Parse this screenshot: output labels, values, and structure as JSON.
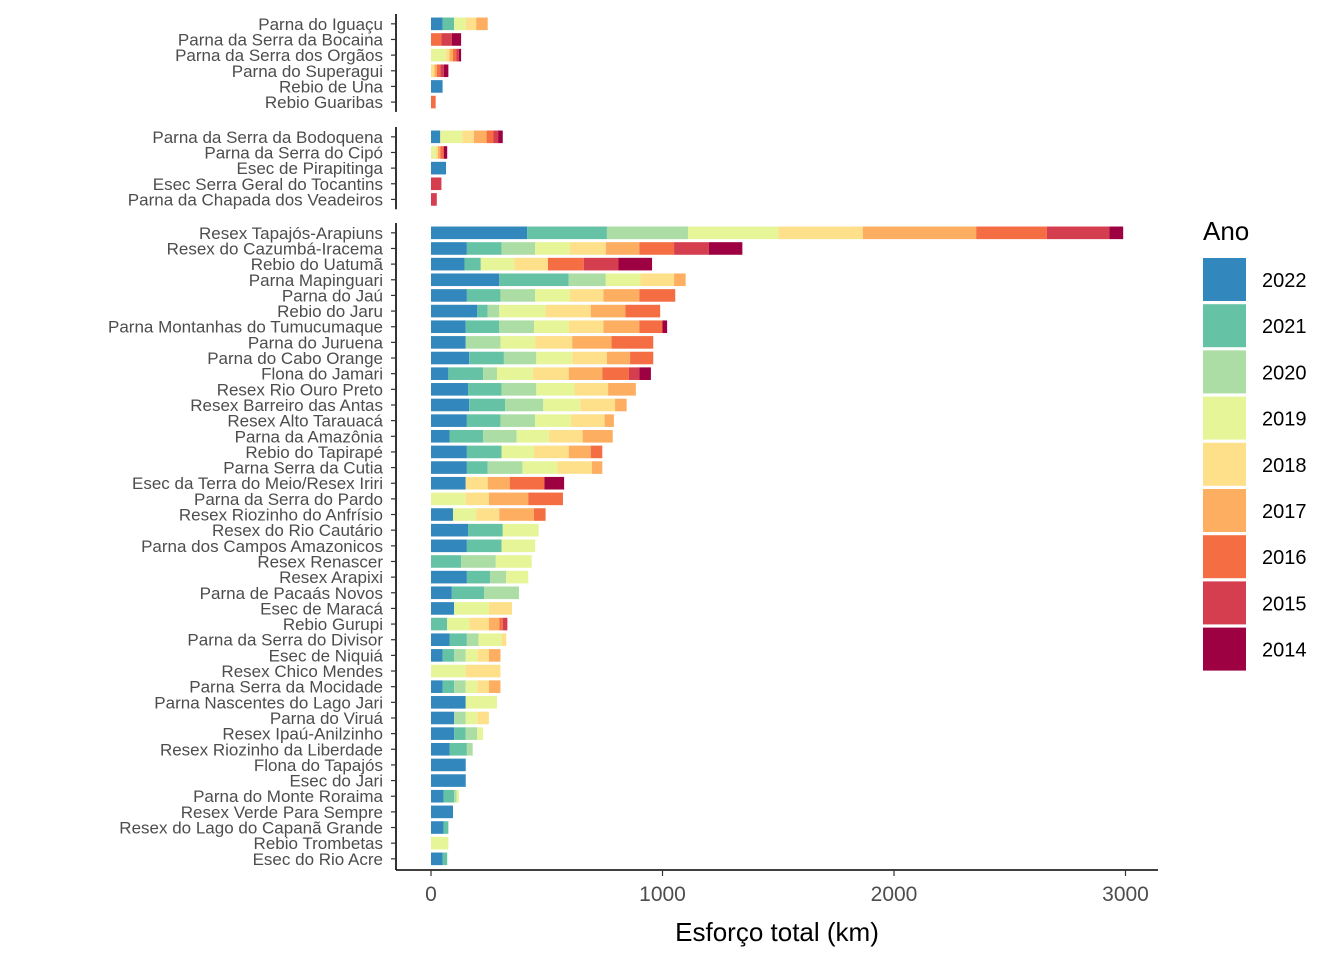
{
  "chart_data": {
    "type": "bar",
    "orientation": "horizontal",
    "stacked": true,
    "xlabel": "Esforço total (km)",
    "x_ticks": [
      0,
      1000,
      2000,
      3000
    ],
    "xlim": [
      -140,
      3140
    ],
    "grid": false,
    "legend": {
      "title": "Ano",
      "placement": "right",
      "entries": [
        {
          "label": "2022",
          "color": "#3288BD"
        },
        {
          "label": "2021",
          "color": "#66C2A5"
        },
        {
          "label": "2020",
          "color": "#ABDDA4"
        },
        {
          "label": "2019",
          "color": "#E6F598"
        },
        {
          "label": "2018",
          "color": "#FEE08B"
        },
        {
          "label": "2017",
          "color": "#FDAE61"
        },
        {
          "label": "2016",
          "color": "#F46D43"
        },
        {
          "label": "2015",
          "color": "#D53E4F"
        },
        {
          "label": "2014",
          "color": "#9E0142"
        }
      ]
    },
    "series_order": [
      "2022",
      "2021",
      "2020",
      "2019",
      "2018",
      "2017",
      "2016",
      "2015",
      "2014"
    ],
    "panels": [
      {
        "categories": [
          {
            "name": "Parna do Iguaçu",
            "values": [
              50,
              50,
              0,
              50,
              45,
              50,
              0,
              0,
              0
            ]
          },
          {
            "name": "Parna da Serra da Bocaina",
            "values": [
              0,
              0,
              0,
              0,
              0,
              0,
              45,
              45,
              40
            ]
          },
          {
            "name": "Parna da Serra dos Orgãos",
            "values": [
              0,
              0,
              0,
              65,
              15,
              15,
              15,
              10,
              10
            ]
          },
          {
            "name": "Parna do Superagui",
            "values": [
              0,
              0,
              0,
              0,
              15,
              10,
              15,
              15,
              20
            ]
          },
          {
            "name": "Rebio de Una",
            "values": [
              50,
              0,
              0,
              0,
              0,
              0,
              0,
              0,
              0
            ]
          },
          {
            "name": "Rebio Guaribas",
            "values": [
              0,
              0,
              0,
              0,
              0,
              0,
              20,
              0,
              0
            ]
          }
        ]
      },
      {
        "categories": [
          {
            "name": "Parna da Serra da Bodoquena",
            "values": [
              40,
              0,
              0,
              95,
              50,
              55,
              30,
              20,
              20
            ]
          },
          {
            "name": "Parna da Serra do Cipó",
            "values": [
              0,
              0,
              0,
              20,
              10,
              10,
              15,
              0,
              15
            ]
          },
          {
            "name": "Esec de Pirapitinga",
            "values": [
              65,
              0,
              0,
              0,
              0,
              0,
              0,
              0,
              0
            ]
          },
          {
            "name": "Esec Serra Geral do Tocantins",
            "values": [
              0,
              0,
              0,
              0,
              0,
              0,
              0,
              45,
              0
            ]
          },
          {
            "name": "Parna da Chapada dos Veadeiros",
            "values": [
              0,
              0,
              0,
              0,
              0,
              0,
              0,
              25,
              0
            ]
          }
        ]
      },
      {
        "categories": [
          {
            "name": "Resex Tapajós-Arapiuns",
            "values": [
              415,
              345,
              350,
              390,
              365,
              490,
              305,
              270,
              60
            ]
          },
          {
            "name": "Resex do Cazumbá-Iracema",
            "values": [
              155,
              150,
              145,
              150,
              155,
              145,
              150,
              150,
              145
            ]
          },
          {
            "name": "Rebio do Uatumã",
            "values": [
              145,
              70,
              0,
              145,
              145,
              0,
              155,
              150,
              145
            ]
          },
          {
            "name": "Parna Mapinguari",
            "values": [
              295,
              300,
              160,
              150,
              145,
              50,
              0,
              0,
              0
            ]
          },
          {
            "name": "Parna do Jaú",
            "values": [
              155,
              145,
              150,
              150,
              145,
              155,
              155,
              0,
              0
            ]
          },
          {
            "name": "Rebio do Jaru",
            "values": [
              200,
              45,
              50,
              200,
              195,
              150,
              150,
              0,
              0
            ]
          },
          {
            "name": "Parna Montanhas do Tumucumaque",
            "values": [
              150,
              145,
              150,
              150,
              150,
              155,
              100,
              0,
              20
            ]
          },
          {
            "name": "Parna do Juruena",
            "values": [
              150,
              0,
              150,
              150,
              160,
              170,
              180,
              0,
              0
            ]
          },
          {
            "name": "Parna do Cabo Orange",
            "values": [
              165,
              150,
              140,
              155,
              150,
              100,
              100,
              0,
              0
            ]
          },
          {
            "name": "Flona do Jamari",
            "values": [
              75,
              150,
              60,
              155,
              155,
              145,
              115,
              45,
              50
            ]
          },
          {
            "name": "Resex Rio Ouro Preto",
            "values": [
              160,
              145,
              150,
              165,
              145,
              120,
              0,
              0,
              0
            ]
          },
          {
            "name": "Resex Barreiro das Antas",
            "values": [
              165,
              155,
              165,
              160,
              150,
              50,
              0,
              0,
              0
            ]
          },
          {
            "name": "Resex Alto Tarauacá",
            "values": [
              155,
              145,
              150,
              155,
              145,
              40,
              0,
              0,
              0
            ]
          },
          {
            "name": "Parna da Amazônia",
            "values": [
              80,
              145,
              145,
              140,
              145,
              130,
              0,
              0,
              0
            ]
          },
          {
            "name": "Rebio do Tapirapé",
            "values": [
              155,
              150,
              0,
              140,
              150,
              95,
              50,
              0,
              0
            ]
          },
          {
            "name": "Parna Serra da Cutia",
            "values": [
              155,
              90,
              150,
              150,
              150,
              45,
              0,
              0,
              0
            ]
          },
          {
            "name": "Esec da Terra do Meio/Resex Iriri",
            "values": [
              150,
              0,
              0,
              0,
              95,
              95,
              150,
              0,
              85
            ]
          },
          {
            "name": "Parna da Serra do Pardo",
            "values": [
              0,
              0,
              0,
              150,
              100,
              170,
              150,
              0,
              0
            ]
          },
          {
            "name": "Resex Riozinho do Anfrísio",
            "values": [
              95,
              0,
              0,
              100,
              100,
              150,
              50,
              0,
              0
            ]
          },
          {
            "name": "Resex do Rio Cautário",
            "values": [
              160,
              150,
              0,
              155,
              0,
              0,
              0,
              0,
              0
            ]
          },
          {
            "name": "Parna dos Campos Amazonicos",
            "values": [
              155,
              150,
              0,
              145,
              0,
              0,
              0,
              0,
              0
            ]
          },
          {
            "name": "Resex Renascer",
            "values": [
              0,
              130,
              150,
              155,
              0,
              0,
              0,
              0,
              0
            ]
          },
          {
            "name": "Resex Arapixi",
            "values": [
              155,
              100,
              70,
              95,
              0,
              0,
              0,
              0,
              0
            ]
          },
          {
            "name": "Parna de Pacaás Novos",
            "values": [
              90,
              140,
              150,
              0,
              0,
              0,
              0,
              0,
              0
            ]
          },
          {
            "name": "Esec de Maracá",
            "values": [
              100,
              0,
              0,
              150,
              100,
              0,
              0,
              0,
              0
            ]
          },
          {
            "name": "Rebio Gurupi",
            "values": [
              0,
              70,
              0,
              95,
              85,
              45,
              15,
              20,
              0
            ]
          },
          {
            "name": "Parna da Serra do Divisor",
            "values": [
              80,
              75,
              50,
              100,
              20,
              0,
              0,
              0,
              0
            ]
          },
          {
            "name": "Esec de Niquiá",
            "values": [
              50,
              50,
              50,
              50,
              50,
              50,
              0,
              0,
              0
            ]
          },
          {
            "name": "Resex Chico Mendes",
            "values": [
              0,
              0,
              0,
              150,
              150,
              0,
              0,
              0,
              0
            ]
          },
          {
            "name": "Parna Serra da Mocidade",
            "values": [
              50,
              50,
              50,
              50,
              50,
              50,
              0,
              0,
              0
            ]
          },
          {
            "name": "Parna Nascentes do Lago Jari",
            "values": [
              150,
              0,
              0,
              135,
              0,
              0,
              0,
              0,
              0
            ]
          },
          {
            "name": "Parna do Viruá",
            "values": [
              100,
              0,
              50,
              50,
              50,
              0,
              0,
              0,
              0
            ]
          },
          {
            "name": "Resex Ipaú-Anilzinho",
            "values": [
              100,
              50,
              50,
              25,
              0,
              0,
              0,
              0,
              0
            ]
          },
          {
            "name": "Resex Riozinho da Liberdade",
            "values": [
              80,
              75,
              25,
              0,
              0,
              0,
              0,
              0,
              0
            ]
          },
          {
            "name": "Flona do Tapajós",
            "values": [
              150,
              0,
              0,
              0,
              0,
              0,
              0,
              0,
              0
            ]
          },
          {
            "name": "Esec do Jari",
            "values": [
              150,
              0,
              0,
              0,
              0,
              0,
              0,
              0,
              0
            ]
          },
          {
            "name": "Parna do Monte Roraima",
            "values": [
              55,
              45,
              10,
              10,
              0,
              0,
              0,
              0,
              0
            ]
          },
          {
            "name": "Resex Verde Para Sempre",
            "values": [
              95,
              0,
              0,
              0,
              0,
              0,
              0,
              0,
              0
            ]
          },
          {
            "name": "Resex do Lago do Capanã Grande",
            "values": [
              55,
              20,
              0,
              0,
              0,
              0,
              0,
              0,
              0
            ]
          },
          {
            "name": "Rebio Trombetas",
            "values": [
              0,
              0,
              0,
              75,
              0,
              0,
              0,
              0,
              0
            ]
          },
          {
            "name": "Esec do Rio Acre",
            "values": [
              50,
              20,
              0,
              0,
              0,
              0,
              0,
              0,
              0
            ]
          }
        ]
      }
    ]
  }
}
